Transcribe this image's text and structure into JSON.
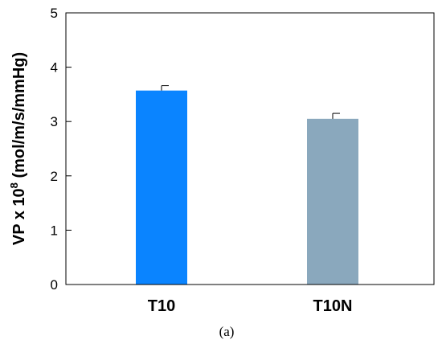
{
  "chart_data": {
    "type": "bar",
    "categories": [
      "T10",
      "T10N"
    ],
    "values": [
      3.57,
      3.05
    ],
    "errors": [
      0.09,
      0.1
    ],
    "colors": [
      "#0a84ff",
      "#8aa8bd"
    ],
    "ylabel_main": "VP x 10",
    "ylabel_sup": "8",
    "ylabel_rest": " (mol/m/s/mmHg)",
    "ylim": [
      0,
      5
    ],
    "yticks": [
      0,
      1,
      2,
      3,
      4,
      5
    ],
    "grid": false
  },
  "caption": "(a)"
}
